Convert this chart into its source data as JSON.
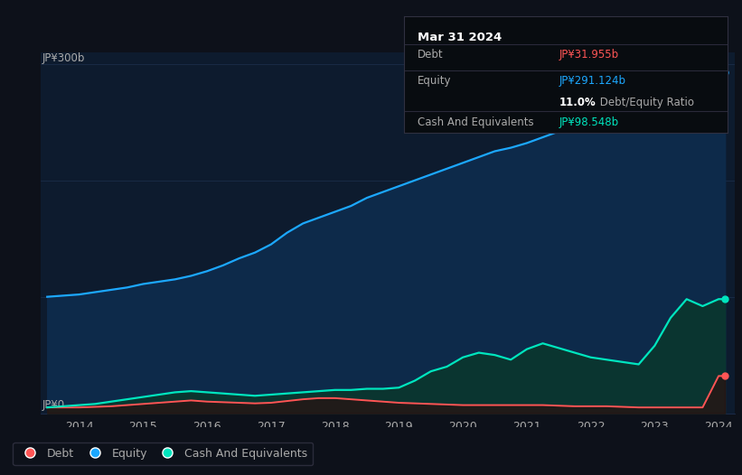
{
  "bg_color": "#0d111a",
  "plot_bg_color": "#0d1b2e",
  "equity_color": "#1ca8ff",
  "debt_color": "#ff5555",
  "cash_color": "#00e5be",
  "equity_fill": "#0d2a4a",
  "debt_fill": "#2a1010",
  "cash_fill": "#0a3530",
  "grid_color": "#1e3050",
  "text_color": "#aaaaaa",
  "tooltip_bg": "#080c10",
  "ylabel_text": "JP¥300b",
  "y0_text": "JP¥0",
  "xticklabels": [
    "2014",
    "2015",
    "2016",
    "2017",
    "2018",
    "2019",
    "2020",
    "2021",
    "2022",
    "2023",
    "2024"
  ],
  "xtick_positions": [
    2014,
    2015,
    2016,
    2017,
    2018,
    2019,
    2020,
    2021,
    2022,
    2023,
    2024
  ],
  "years": [
    2013.5,
    2013.75,
    2014.0,
    2014.25,
    2014.5,
    2014.75,
    2015.0,
    2015.25,
    2015.5,
    2015.75,
    2016.0,
    2016.25,
    2016.5,
    2016.75,
    2017.0,
    2017.25,
    2017.5,
    2017.75,
    2018.0,
    2018.25,
    2018.5,
    2018.75,
    2019.0,
    2019.25,
    2019.5,
    2019.75,
    2020.0,
    2020.25,
    2020.5,
    2020.75,
    2021.0,
    2021.25,
    2021.5,
    2021.75,
    2022.0,
    2022.25,
    2022.5,
    2022.75,
    2023.0,
    2023.25,
    2023.5,
    2023.75,
    2024.0,
    2024.1
  ],
  "equity": [
    100,
    101,
    102,
    104,
    106,
    108,
    111,
    113,
    115,
    118,
    122,
    127,
    133,
    138,
    145,
    155,
    163,
    168,
    173,
    178,
    185,
    190,
    195,
    200,
    205,
    210,
    215,
    220,
    225,
    228,
    232,
    237,
    242,
    246,
    250,
    254,
    258,
    262,
    265,
    268,
    272,
    280,
    291,
    293
  ],
  "debt": [
    5,
    5,
    5,
    5.5,
    6,
    7,
    8,
    9,
    10,
    11,
    10,
    9.5,
    9,
    8.5,
    9,
    10.5,
    12,
    13,
    13,
    12,
    11,
    10,
    9,
    8.5,
    8,
    7.5,
    7,
    7,
    7,
    7,
    7,
    7,
    6.5,
    6,
    6,
    6,
    5.5,
    5,
    5,
    5,
    5,
    5,
    32,
    32
  ],
  "cash": [
    5,
    6,
    7,
    8,
    10,
    12,
    14,
    16,
    18,
    19,
    18,
    17,
    16,
    15,
    16,
    17,
    18,
    19,
    20,
    20,
    21,
    21,
    22,
    28,
    36,
    40,
    48,
    52,
    50,
    46,
    55,
    60,
    56,
    52,
    48,
    46,
    44,
    42,
    58,
    82,
    98,
    92,
    98,
    98
  ],
  "legend_items": [
    "Debt",
    "Equity",
    "Cash And Equivalents"
  ],
  "tooltip": {
    "date": "Mar 31 2024",
    "debt_label": "Debt",
    "debt_value": "JP¥31.955b",
    "equity_label": "Equity",
    "equity_value": "JP¥291.124b",
    "ratio_value": "11.0%",
    "ratio_label": " Debt/Equity Ratio",
    "cash_label": "Cash And Equivalents",
    "cash_value": "JP¥98.548b"
  }
}
